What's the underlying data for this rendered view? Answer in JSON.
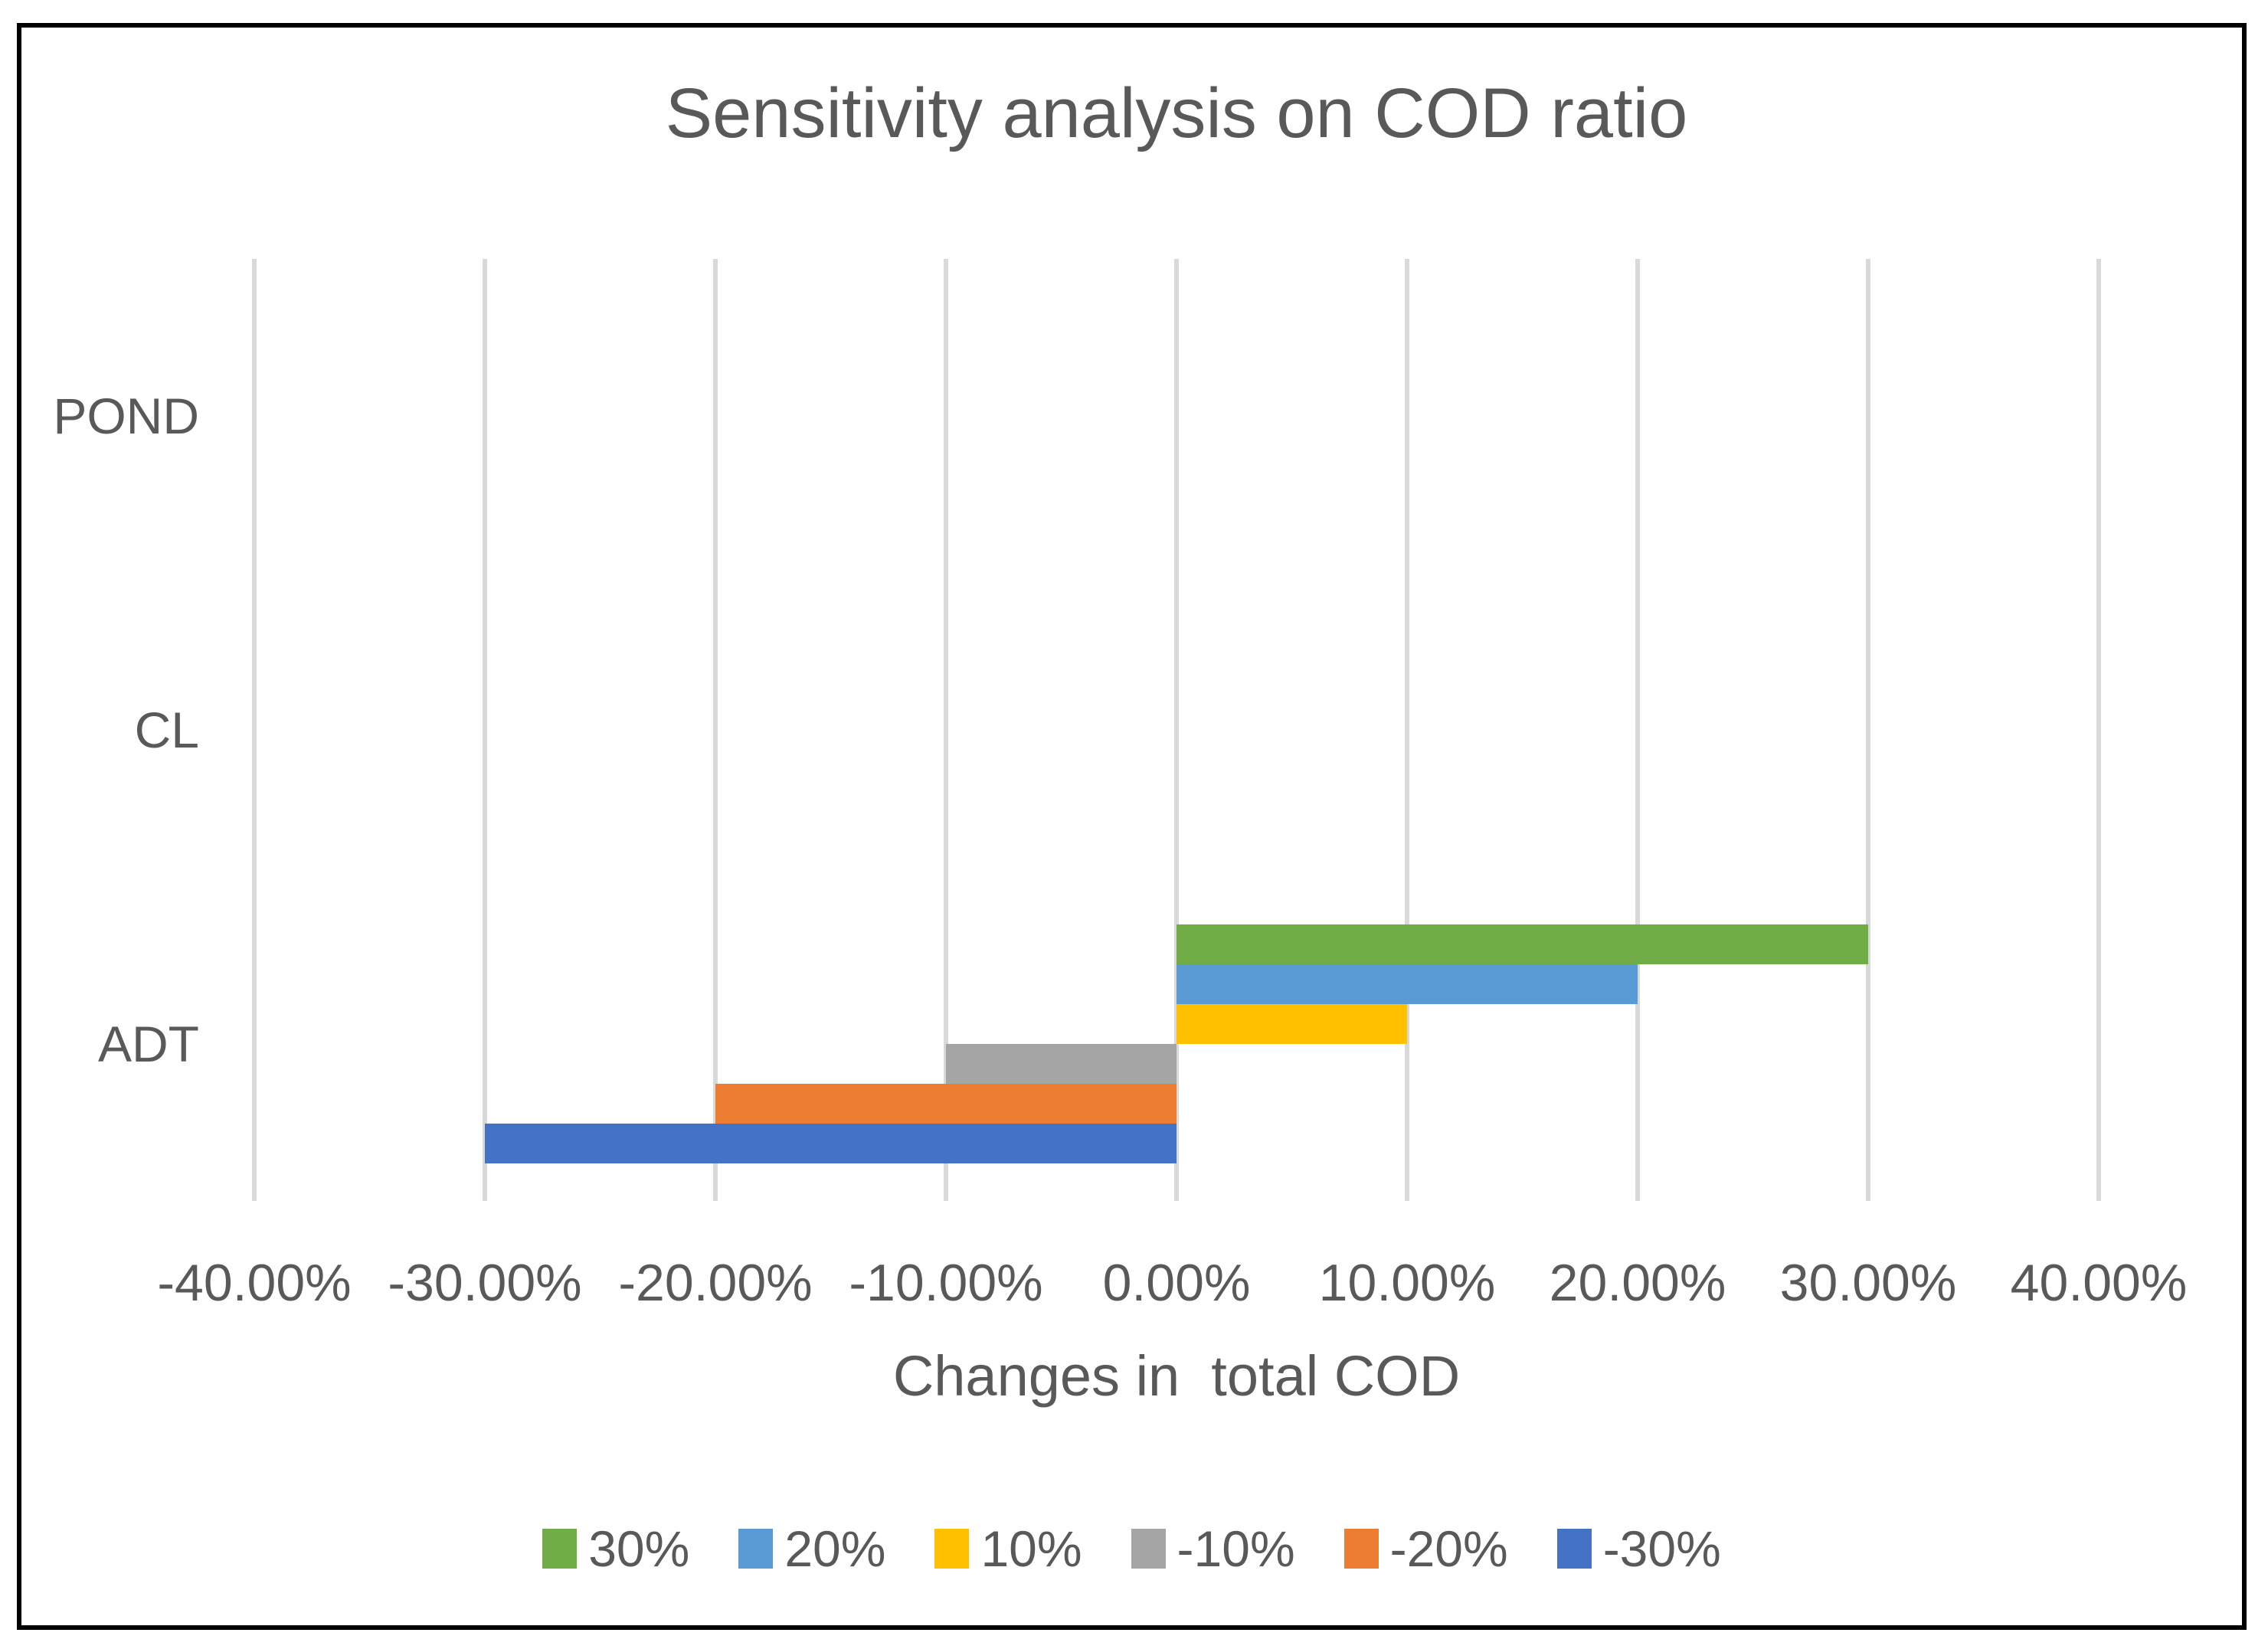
{
  "colors": {
    "text": "#595959",
    "gridline": "#D9D9D9",
    "frame_border": "#000000",
    "background": "#FFFFFF"
  },
  "chart_data": {
    "type": "bar",
    "orientation": "horizontal",
    "title": "Sensitivity analysis on COD ratio",
    "xlabel": "Changes in  total COD",
    "categories": [
      "POND",
      "CL",
      "ADT"
    ],
    "series": [
      {
        "name": "30%",
        "color": "#70AD47",
        "values": [
          0,
          0,
          30
        ]
      },
      {
        "name": "20%",
        "color": "#5B9BD5",
        "values": [
          0,
          0,
          20
        ]
      },
      {
        "name": "10%",
        "color": "#FFC000",
        "values": [
          0,
          0,
          10
        ]
      },
      {
        "name": "-10%",
        "color": "#A5A5A5",
        "values": [
          0,
          0,
          -10
        ]
      },
      {
        "name": "-20%",
        "color": "#ED7D31",
        "values": [
          0,
          0,
          -20
        ]
      },
      {
        "name": "-30%",
        "color": "#4472C4",
        "values": [
          0,
          0,
          -30
        ]
      }
    ],
    "xlim": [
      -40,
      40
    ],
    "x_tick_step": 10,
    "x_tick_labels": [
      "-40.00%",
      "-30.00%",
      "-20.00%",
      "-10.00%",
      "0.00%",
      "10.00%",
      "20.00%",
      "30.00%",
      "40.00%"
    ],
    "grid": true,
    "legend_position": "bottom"
  }
}
